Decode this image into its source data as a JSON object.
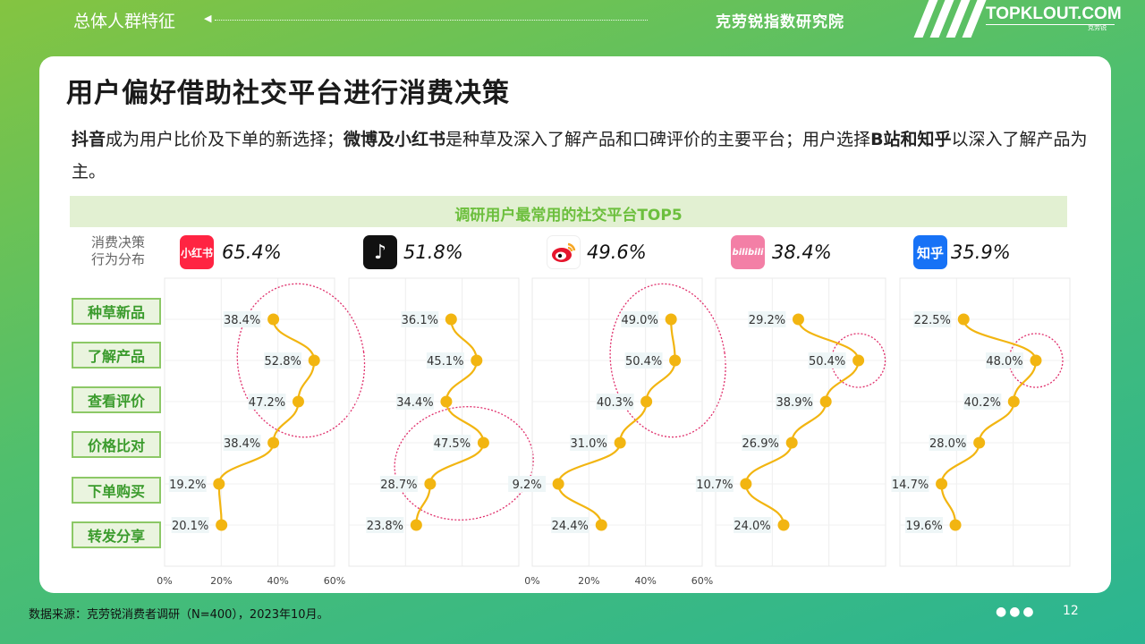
{
  "header": {
    "section": "总体人群特征",
    "org": "克劳锐指数研究院",
    "logo": "TOPKLOUT.COM",
    "logo_sub": "克劳锐"
  },
  "title": "用户偏好借助社交平台进行消费决策",
  "description": {
    "p1_bold": "抖音",
    "p1_text": "成为用户比价及下单的新选择；",
    "p2_bold": "微博及小红书",
    "p2_text": "是种草及深入了解产品和口碑评价的主要平台；用户选择",
    "p3_bold": "B站和知乎",
    "p3_text": "以深入了解产品为主。"
  },
  "chart_data": {
    "type": "line",
    "title": "调研用户最常用的社交平台TOP5",
    "row_header": "消费决策行为分布",
    "row_header_l1": "消费决策",
    "row_header_l2": "行为分布",
    "categories": [
      "种草新品",
      "了解产品",
      "查看评价",
      "价格比对",
      "下单购买",
      "转发分享"
    ],
    "xlim": [
      0,
      60
    ],
    "xticks": [
      "0%",
      "20%",
      "40%",
      "60%"
    ],
    "series": [
      {
        "name": "小红书",
        "share": "65.4%",
        "icon_text": "小红书",
        "icon_color": "#ff2442",
        "values": [
          38.4,
          52.8,
          47.2,
          38.4,
          19.2,
          20.1
        ],
        "highlight": [
          0,
          2
        ]
      },
      {
        "name": "抖音",
        "share": "51.8%",
        "icon_text": "♪",
        "icon_color": "#111111",
        "values": [
          36.1,
          45.1,
          34.4,
          47.5,
          28.7,
          23.8
        ],
        "highlight": [
          3,
          4
        ]
      },
      {
        "name": "微博",
        "share": "49.6%",
        "icon_text": "",
        "icon_color": "#f6b41e",
        "values": [
          49.0,
          50.4,
          40.3,
          31.0,
          9.2,
          24.4
        ],
        "highlight": [
          0,
          2
        ]
      },
      {
        "name": "B站",
        "share": "38.4%",
        "icon_text": "bilibili",
        "icon_color": "#f37fa6",
        "values": [
          29.2,
          50.4,
          38.9,
          26.9,
          10.7,
          24.0
        ],
        "highlight": [
          1,
          1
        ]
      },
      {
        "name": "知乎",
        "share": "35.9%",
        "icon_text": "知乎",
        "icon_color": "#1772f6",
        "values": [
          22.5,
          48.0,
          40.2,
          28.0,
          14.7,
          19.6
        ],
        "highlight": [
          1,
          1
        ]
      }
    ],
    "colors": {
      "line": "#f2b511",
      "point": "#f2b511",
      "highlight_ring": "#e0306c",
      "label_bg": "#eef6f7"
    }
  },
  "footer": {
    "source": "数据来源：克劳锐消费者调研（N=400），2023年10月。",
    "dots": "●●●",
    "page": "12"
  }
}
